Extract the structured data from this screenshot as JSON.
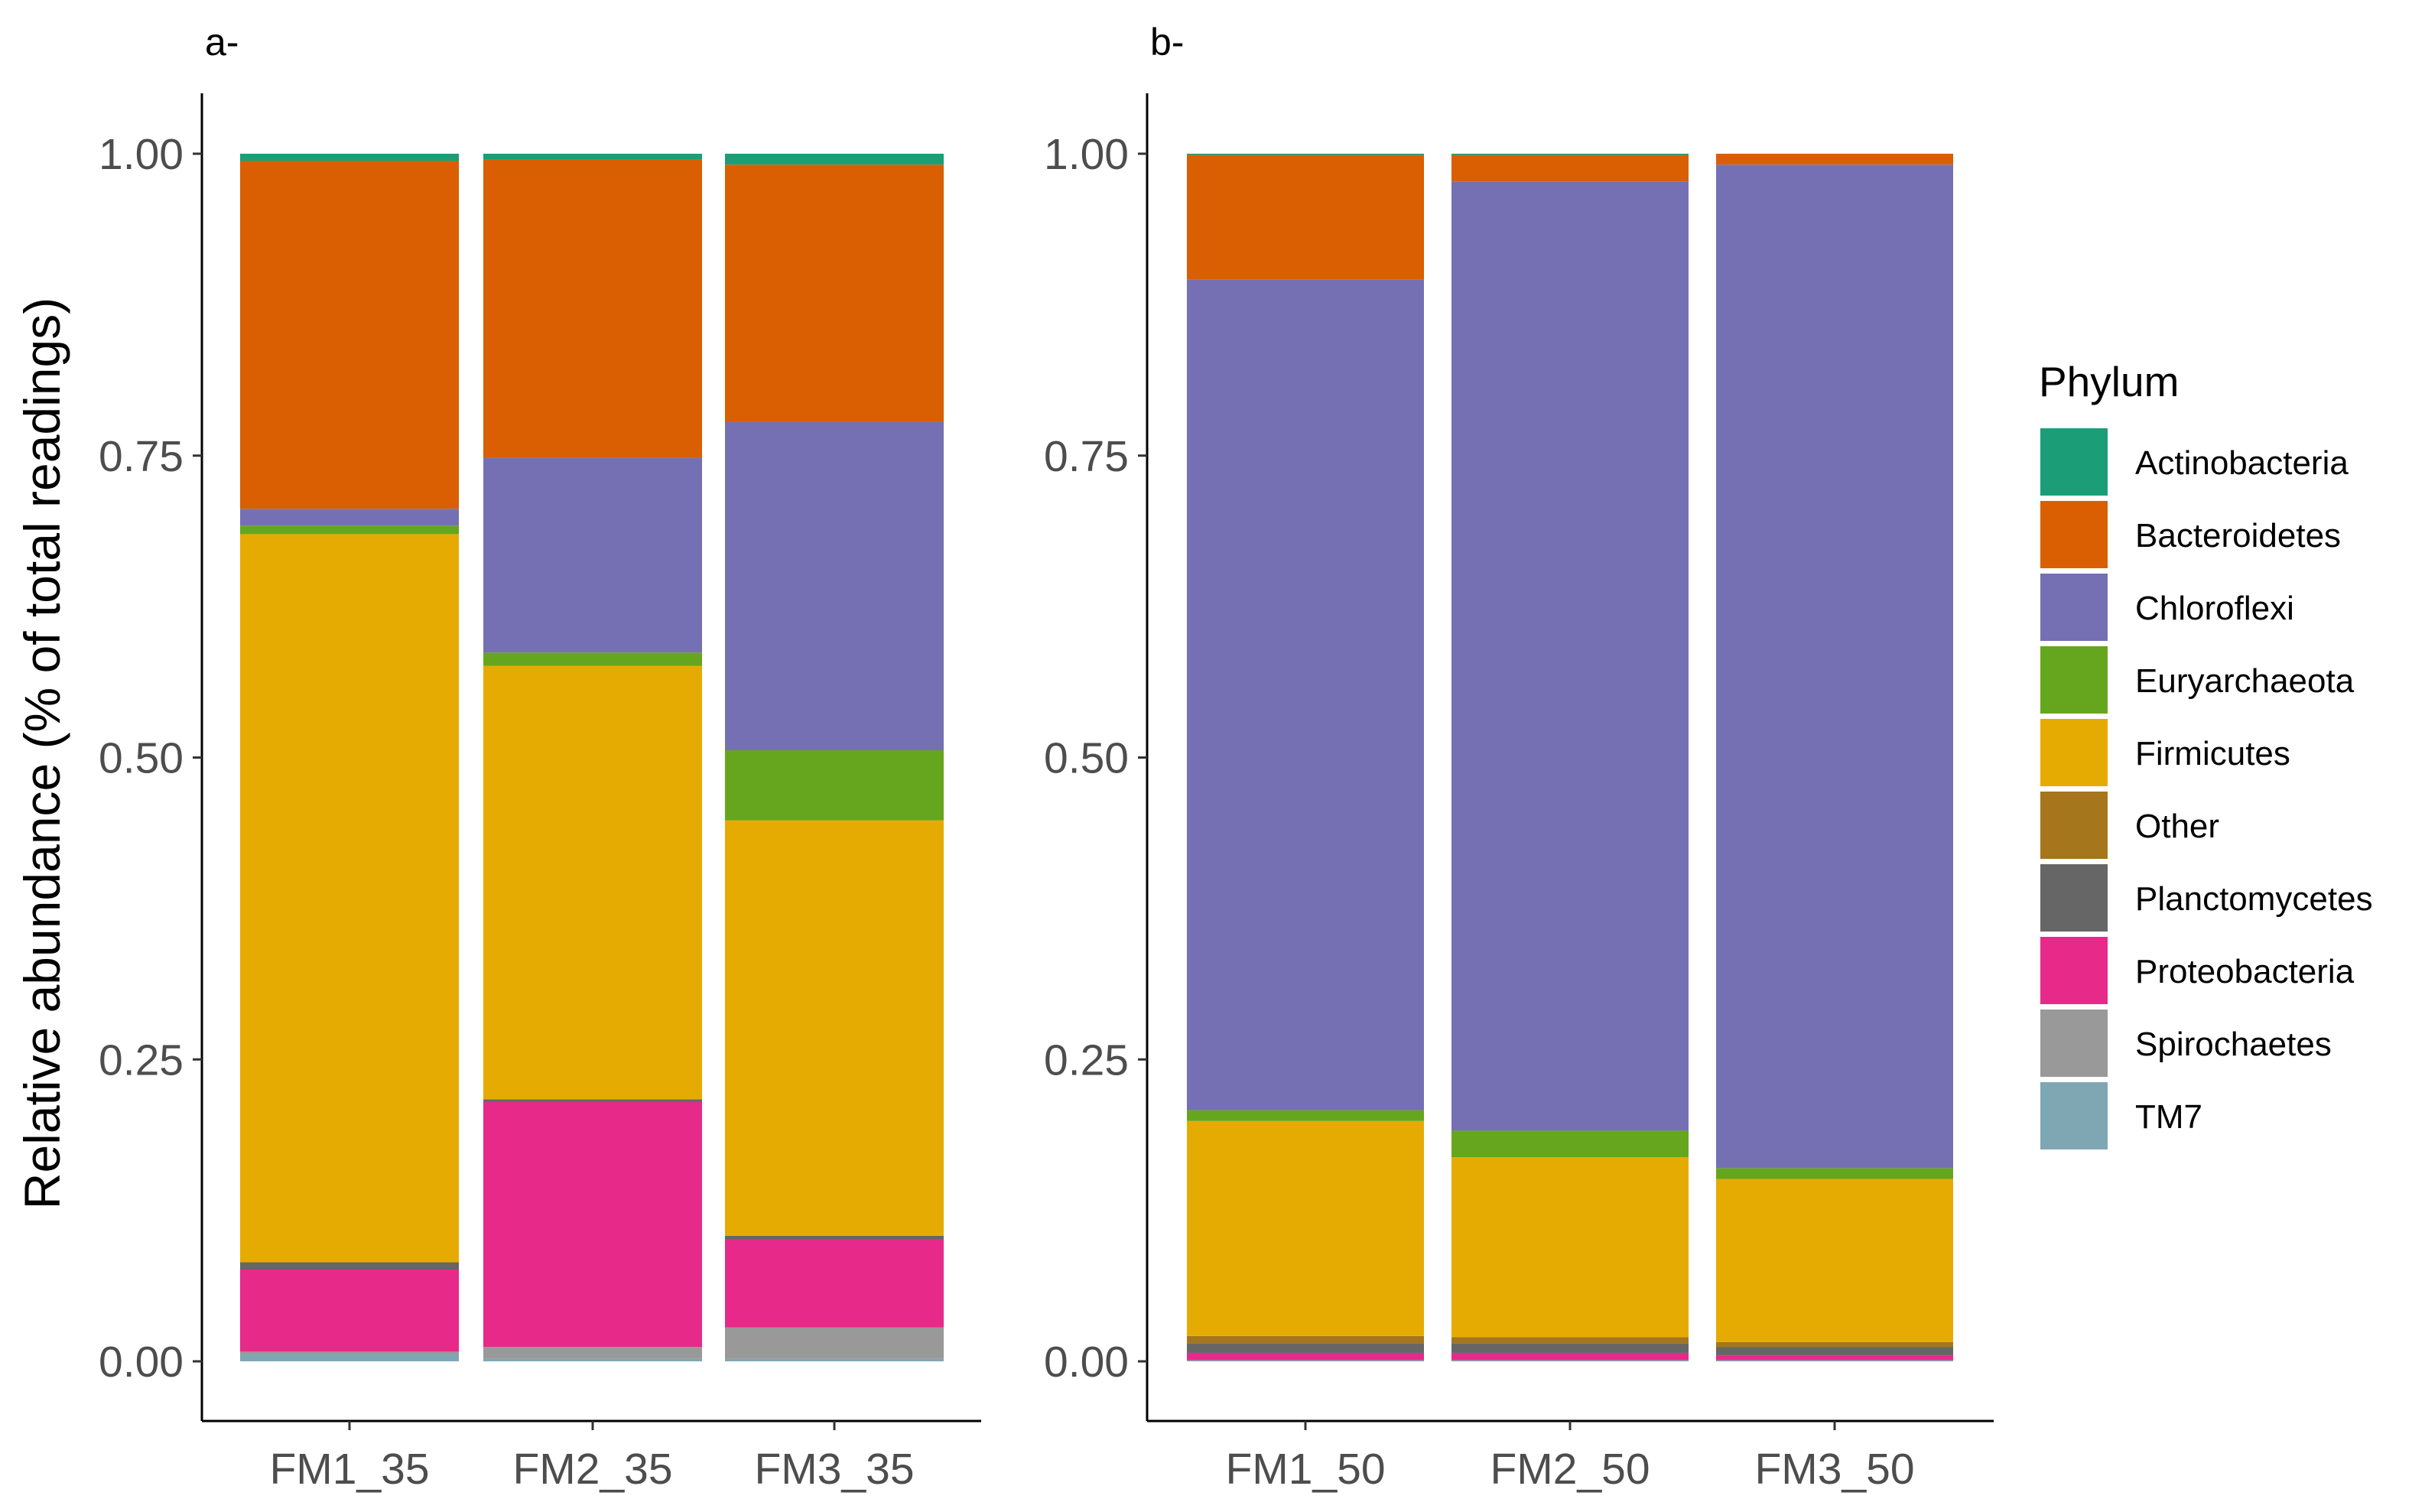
{
  "chart_data": {
    "type": "bar",
    "stacked": true,
    "ylabel": "Relative abundance (% of total readings)",
    "ylim": [
      0,
      1
    ],
    "y_ticks": [
      "0.00",
      "0.25",
      "0.50",
      "0.75",
      "1.00"
    ],
    "legend_title": "Phylum",
    "legend_position": "right",
    "phyla": [
      "Actinobacteria",
      "Bacteroidetes",
      "Chloroflexi",
      "Euryarchaeota",
      "Firmicutes",
      "Other",
      "Planctomycetes",
      "Proteobacteria",
      "Spirochaetes",
      "TM7"
    ],
    "colors": {
      "Actinobacteria": "#1b9e77",
      "Bacteroidetes": "#d95f02",
      "Chloroflexi": "#7570b3",
      "Euryarchaeota": "#66a61e",
      "Firmicutes": "#e6ab02",
      "Other": "#a6761d",
      "Planctomycetes": "#666666",
      "Proteobacteria": "#e7298a",
      "Spirochaetes": "#999999",
      "TM7": "#7fa7b3"
    },
    "stack_order": [
      "TM7",
      "Spirochaetes",
      "Proteobacteria",
      "Planctomycetes",
      "Other",
      "Firmicutes",
      "Euryarchaeota",
      "Chloroflexi",
      "Bacteroidetes",
      "Actinobacteria"
    ],
    "panels": [
      {
        "tag": "a-",
        "categories": [
          "FM1_35",
          "FM2_35",
          "FM3_35"
        ],
        "values": {
          "TM7": [
            0.006,
            0.002,
            0.002
          ],
          "Spirochaetes": [
            0.002,
            0.01,
            0.026
          ],
          "Proteobacteria": [
            0.068,
            0.203,
            0.073
          ],
          "Planctomycetes": [
            0.006,
            0.002,
            0.003
          ],
          "Other": [
            0.0,
            0.0,
            0.0
          ],
          "Firmicutes": [
            0.603,
            0.359,
            0.344
          ],
          "Euryarchaeota": [
            0.007,
            0.011,
            0.058
          ],
          "Chloroflexi": [
            0.014,
            0.161,
            0.272
          ],
          "Bacteroidetes": [
            0.288,
            0.247,
            0.213
          ],
          "Actinobacteria": [
            0.006,
            0.005,
            0.009
          ]
        }
      },
      {
        "tag": "b-",
        "categories": [
          "FM1_50",
          "FM2_50",
          "FM3_50"
        ],
        "values": {
          "TM7": [
            0.001,
            0.001,
            0.001
          ],
          "Spirochaetes": [
            0.0,
            0.0,
            0.0
          ],
          "Proteobacteria": [
            0.006,
            0.006,
            0.004
          ],
          "Planctomycetes": [
            0.008,
            0.008,
            0.007
          ],
          "Other": [
            0.006,
            0.005,
            0.004
          ],
          "Firmicutes": [
            0.178,
            0.149,
            0.135
          ],
          "Euryarchaeota": [
            0.009,
            0.022,
            0.009
          ],
          "Chloroflexi": [
            0.688,
            0.786,
            0.831
          ],
          "Bacteroidetes": [
            0.103,
            0.022,
            0.009
          ],
          "Actinobacteria": [
            0.001,
            0.001,
            0.0
          ]
        }
      }
    ]
  }
}
